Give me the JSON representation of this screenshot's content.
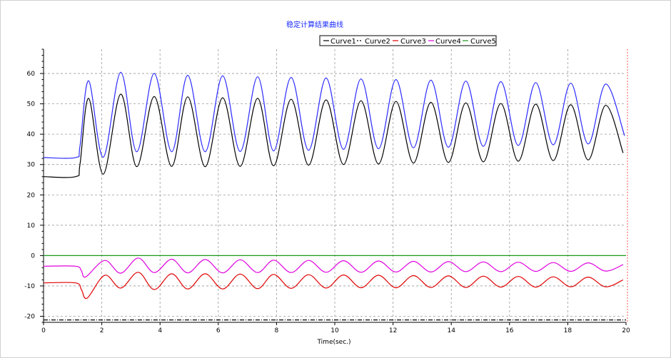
{
  "chart_data": {
    "type": "line",
    "title": "稳定计算结果曲线",
    "xlabel": "Time(sec.)",
    "ylabel": "",
    "xlim": [
      0,
      20
    ],
    "ylim": [
      -22,
      68
    ],
    "x_ticks": [
      "0",
      "2",
      "4",
      "6",
      "8",
      "10",
      "12",
      "14",
      "16",
      "18",
      "20"
    ],
    "y_ticks": [
      "60",
      "50",
      "40",
      "30",
      "20",
      "10",
      "0",
      "-10",
      "-20"
    ],
    "grid": true,
    "legend_position": "top-right",
    "series": [
      {
        "name": "Curve1",
        "color": "#000000",
        "dash": "solid",
        "points": [
          [
            0,
            26
          ],
          [
            1.1,
            26
          ],
          [
            1.25,
            30
          ],
          [
            1.55,
            51.8
          ],
          [
            2.05,
            26.8
          ],
          [
            2.65,
            53.2
          ],
          [
            3.2,
            29.3
          ],
          [
            3.8,
            52.4
          ],
          [
            4.4,
            29.4
          ],
          [
            4.95,
            52.3
          ],
          [
            5.55,
            29.3
          ],
          [
            6.15,
            52
          ],
          [
            6.75,
            29.4
          ],
          [
            7.35,
            51.8
          ],
          [
            7.9,
            29.6
          ],
          [
            8.5,
            51.5
          ],
          [
            9.1,
            29.8
          ],
          [
            9.7,
            51.3
          ],
          [
            10.3,
            30
          ],
          [
            10.9,
            51
          ],
          [
            11.5,
            30.2
          ],
          [
            12.1,
            50.8
          ],
          [
            12.7,
            30.5
          ],
          [
            13.3,
            50.5
          ],
          [
            13.9,
            30.7
          ],
          [
            14.5,
            50.3
          ],
          [
            15.1,
            30.9
          ],
          [
            15.7,
            50.1
          ],
          [
            16.3,
            31.1
          ],
          [
            16.9,
            49.9
          ],
          [
            17.5,
            31.3
          ],
          [
            18.1,
            49.7
          ],
          [
            18.7,
            31.5
          ],
          [
            19.3,
            49.5
          ],
          [
            19.9,
            33.8
          ]
        ]
      },
      {
        "name": "Curve2",
        "color": "#000000",
        "dash": "dashdot",
        "points": [
          [
            0,
            -21.2
          ],
          [
            20,
            -21.2
          ]
        ]
      },
      {
        "name": "Curve3",
        "color": "#e00000",
        "dash": "solid",
        "points": [
          [
            0,
            -9
          ],
          [
            1.1,
            -9
          ],
          [
            1.3,
            -11.2
          ],
          [
            1.5,
            -14
          ],
          [
            2.1,
            -6.5
          ],
          [
            2.65,
            -10.7
          ],
          [
            3.25,
            -5.5
          ],
          [
            3.8,
            -11.2
          ],
          [
            4.4,
            -6
          ],
          [
            4.95,
            -11
          ],
          [
            5.55,
            -6
          ],
          [
            6.15,
            -11
          ],
          [
            6.75,
            -6.1
          ],
          [
            7.35,
            -10.9
          ],
          [
            7.9,
            -6.2
          ],
          [
            8.5,
            -10.8
          ],
          [
            9.1,
            -6.3
          ],
          [
            9.7,
            -10.7
          ],
          [
            10.3,
            -6.4
          ],
          [
            10.9,
            -10.6
          ],
          [
            11.5,
            -6.5
          ],
          [
            12.1,
            -10.6
          ],
          [
            12.7,
            -6.6
          ],
          [
            13.3,
            -10.5
          ],
          [
            13.9,
            -6.7
          ],
          [
            14.5,
            -10.5
          ],
          [
            15.1,
            -6.8
          ],
          [
            15.7,
            -10.4
          ],
          [
            16.3,
            -6.9
          ],
          [
            16.9,
            -10.4
          ],
          [
            17.5,
            -7
          ],
          [
            18.1,
            -10.3
          ],
          [
            18.7,
            -7.1
          ],
          [
            19.3,
            -10.3
          ],
          [
            19.9,
            -8
          ]
        ]
      },
      {
        "name": "Curve4",
        "color": "#e000e0",
        "dash": "solid",
        "points": [
          [
            0,
            -3.5
          ],
          [
            1.1,
            -3.5
          ],
          [
            1.3,
            -5
          ],
          [
            1.45,
            -7
          ],
          [
            2.1,
            -1.6
          ],
          [
            2.65,
            -5.8
          ],
          [
            3.25,
            -0.8
          ],
          [
            3.8,
            -5.6
          ],
          [
            4.4,
            -1.2
          ],
          [
            4.95,
            -5.7
          ],
          [
            5.55,
            -1.3
          ],
          [
            6.15,
            -5.7
          ],
          [
            6.75,
            -1.4
          ],
          [
            7.35,
            -5.6
          ],
          [
            7.9,
            -1.5
          ],
          [
            8.5,
            -5.6
          ],
          [
            9.1,
            -1.6
          ],
          [
            9.7,
            -5.5
          ],
          [
            10.3,
            -1.7
          ],
          [
            10.9,
            -5.5
          ],
          [
            11.5,
            -1.8
          ],
          [
            12.1,
            -5.4
          ],
          [
            12.7,
            -1.9
          ],
          [
            13.3,
            -5.4
          ],
          [
            13.9,
            -2
          ],
          [
            14.5,
            -5.3
          ],
          [
            15.1,
            -2.1
          ],
          [
            15.7,
            -5.3
          ],
          [
            16.3,
            -2.2
          ],
          [
            16.9,
            -5.2
          ],
          [
            17.5,
            -2.3
          ],
          [
            18.1,
            -5.2
          ],
          [
            18.7,
            -2.4
          ],
          [
            19.3,
            -5.1
          ],
          [
            19.9,
            -3
          ]
        ]
      },
      {
        "name": "Curve5",
        "color": "#1a9a1a",
        "dash": "solid",
        "points": [
          [
            0,
            0
          ],
          [
            20,
            0
          ]
        ]
      },
      {
        "name": "",
        "color": "#2a2aff",
        "dash": "solid",
        "points": [
          [
            0,
            32.3
          ],
          [
            1.1,
            32.3
          ],
          [
            1.25,
            36
          ],
          [
            1.55,
            57.6
          ],
          [
            2.05,
            32.4
          ],
          [
            2.65,
            60.4
          ],
          [
            3.2,
            34.2
          ],
          [
            3.8,
            60
          ],
          [
            4.4,
            34.2
          ],
          [
            4.95,
            59.4
          ],
          [
            5.55,
            34.2
          ],
          [
            6.15,
            59.2
          ],
          [
            6.75,
            34.3
          ],
          [
            7.35,
            58.9
          ],
          [
            7.9,
            34.5
          ],
          [
            8.5,
            58.7
          ],
          [
            9.1,
            34.7
          ],
          [
            9.7,
            58.5
          ],
          [
            10.3,
            35
          ],
          [
            10.9,
            58.2
          ],
          [
            11.5,
            35.2
          ],
          [
            12.1,
            58
          ],
          [
            12.7,
            35.5
          ],
          [
            13.3,
            57.8
          ],
          [
            13.9,
            35.7
          ],
          [
            14.5,
            57.5
          ],
          [
            15.1,
            36
          ],
          [
            15.7,
            57.3
          ],
          [
            16.3,
            36.3
          ],
          [
            16.9,
            57
          ],
          [
            17.5,
            36.5
          ],
          [
            18.1,
            56.8
          ],
          [
            18.7,
            36.8
          ],
          [
            19.3,
            56.5
          ],
          [
            19.95,
            39.5
          ]
        ]
      }
    ]
  }
}
